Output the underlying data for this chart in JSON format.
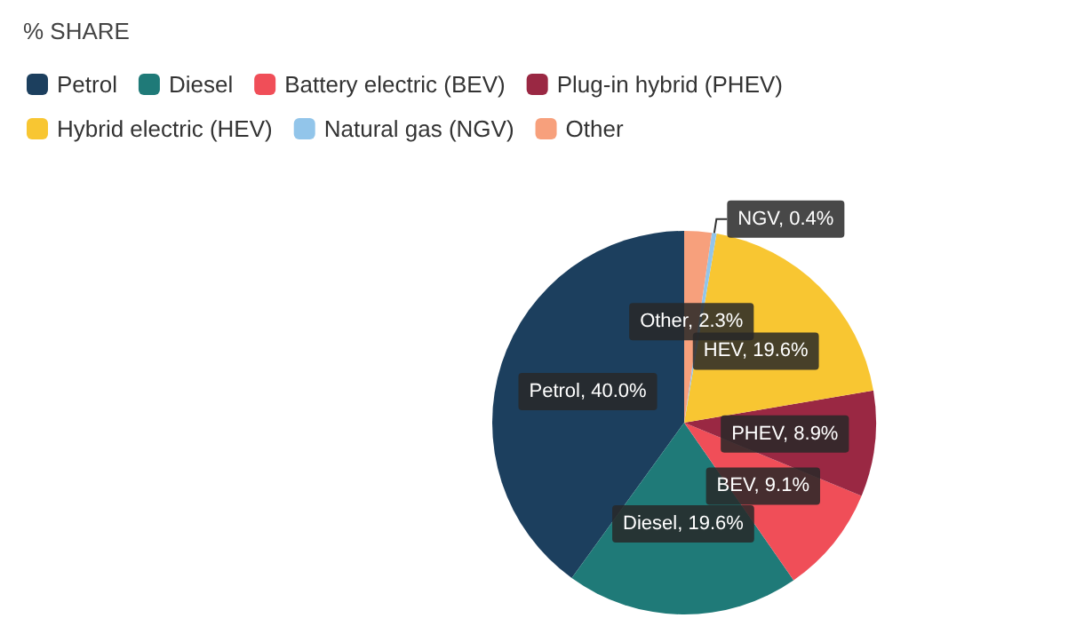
{
  "chart_data": {
    "type": "pie",
    "title": "% SHARE",
    "categories": [
      "Petrol",
      "Diesel",
      "Battery electric (BEV)",
      "Plug-in hybrid (PHEV)",
      "Hybrid electric (HEV)",
      "Natural gas (NGV)",
      "Other"
    ],
    "values": [
      40.0,
      19.6,
      9.1,
      8.9,
      19.6,
      0.4,
      2.3
    ],
    "colors": [
      "#1c3f5e",
      "#1f7a78",
      "#f04e58",
      "#9a2843",
      "#f8c632",
      "#92c5ea",
      "#f7a07c"
    ],
    "value_labels": [
      "Petrol, 40.0%",
      "Diesel, 19.6%",
      "BEV, 9.1%",
      "PHEV, 8.9%",
      "HEV, 19.6%",
      "NGV, 0.4%",
      "Other, 2.3%"
    ],
    "legend": "top left"
  }
}
